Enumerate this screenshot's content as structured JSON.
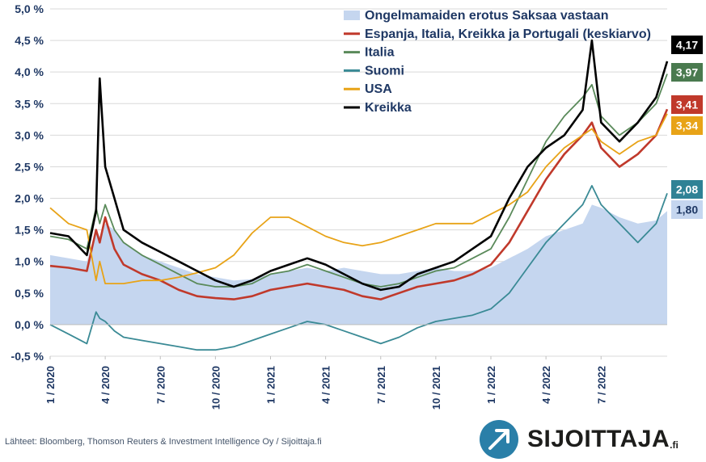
{
  "chart_data": {
    "type": "line",
    "title": "",
    "ylim": [
      -0.5,
      5.0
    ],
    "y_ticks": [
      "-0,5 %",
      "0,0 %",
      "0,5 %",
      "1,0 %",
      "1,5 %",
      "2,0 %",
      "2,5 %",
      "3,0 %",
      "3,5 %",
      "4,0 %",
      "4,5 %",
      "5,0 %"
    ],
    "x_ticks": [
      "1 / 2020",
      "4 / 2020",
      "7 / 2020",
      "10 / 2020",
      "1 / 2021",
      "4 / 2021",
      "7 / 2021",
      "10 / 2021",
      "1 / 2022",
      "4 / 2022",
      "7 / 2022"
    ],
    "x_months": [
      0,
      1,
      2,
      2.5,
      2.7,
      3,
      3.5,
      4,
      5,
      6,
      7,
      8,
      9,
      10,
      11,
      12,
      13,
      14,
      15,
      16,
      17,
      18,
      19,
      20,
      21,
      22,
      23,
      24,
      25,
      26,
      27,
      28,
      29,
      29.5,
      30,
      31,
      32,
      33,
      33.6
    ],
    "grid": true,
    "legend_position": "top-right",
    "series": [
      {
        "name": "Ongelmamaiden erotus Saksaa vastaan",
        "kind": "area",
        "color": "#c5d6ef",
        "values": [
          1.1,
          1.05,
          1.0,
          1.5,
          1.4,
          1.6,
          1.5,
          1.3,
          1.1,
          1.0,
          0.9,
          0.8,
          0.75,
          0.7,
          0.72,
          0.8,
          0.85,
          0.9,
          0.85,
          0.9,
          0.85,
          0.8,
          0.8,
          0.85,
          0.9,
          0.85,
          0.85,
          0.9,
          1.05,
          1.2,
          1.4,
          1.5,
          1.6,
          1.9,
          1.85,
          1.7,
          1.6,
          1.65,
          1.8
        ]
      },
      {
        "name": "Espanja, Italia, Kreikka ja Portugali (keskiarvo)",
        "kind": "line",
        "color": "#c0392b",
        "values": [
          0.93,
          0.9,
          0.85,
          1.5,
          1.3,
          1.7,
          1.2,
          0.95,
          0.8,
          0.7,
          0.55,
          0.45,
          0.42,
          0.4,
          0.45,
          0.55,
          0.6,
          0.65,
          0.6,
          0.55,
          0.45,
          0.4,
          0.5,
          0.6,
          0.65,
          0.7,
          0.8,
          0.95,
          1.3,
          1.8,
          2.3,
          2.7,
          3.0,
          3.2,
          2.8,
          2.5,
          2.7,
          3.0,
          3.41
        ]
      },
      {
        "name": "Italia",
        "kind": "line",
        "color": "#5a8a5a",
        "values": [
          1.4,
          1.35,
          1.2,
          1.85,
          1.6,
          1.9,
          1.5,
          1.3,
          1.1,
          0.95,
          0.8,
          0.65,
          0.6,
          0.6,
          0.65,
          0.8,
          0.85,
          0.95,
          0.85,
          0.75,
          0.65,
          0.6,
          0.65,
          0.75,
          0.85,
          0.9,
          1.05,
          1.2,
          1.7,
          2.3,
          2.9,
          3.3,
          3.6,
          3.8,
          3.3,
          3.0,
          3.2,
          3.5,
          3.97
        ]
      },
      {
        "name": "Suomi",
        "kind": "line",
        "color": "#3a8a95",
        "values": [
          0.0,
          -0.15,
          -0.3,
          0.2,
          0.1,
          0.05,
          -0.1,
          -0.2,
          -0.25,
          -0.3,
          -0.35,
          -0.4,
          -0.4,
          -0.35,
          -0.25,
          -0.15,
          -0.05,
          0.05,
          0.0,
          -0.1,
          -0.2,
          -0.3,
          -0.2,
          -0.05,
          0.05,
          0.1,
          0.15,
          0.25,
          0.5,
          0.9,
          1.3,
          1.6,
          1.9,
          2.2,
          1.9,
          1.6,
          1.3,
          1.6,
          2.08
        ]
      },
      {
        "name": "USA",
        "kind": "line",
        "color": "#e8a317",
        "values": [
          1.85,
          1.6,
          1.5,
          0.7,
          1.0,
          0.65,
          0.65,
          0.65,
          0.7,
          0.7,
          0.75,
          0.82,
          0.9,
          1.1,
          1.45,
          1.7,
          1.7,
          1.55,
          1.4,
          1.3,
          1.25,
          1.3,
          1.4,
          1.5,
          1.6,
          1.6,
          1.6,
          1.75,
          1.9,
          2.1,
          2.5,
          2.8,
          3.0,
          3.1,
          2.9,
          2.7,
          2.9,
          3.0,
          3.34
        ]
      },
      {
        "name": "Kreikka",
        "kind": "line",
        "color": "#000000",
        "values": [
          1.45,
          1.4,
          1.1,
          1.8,
          3.9,
          2.5,
          2.0,
          1.5,
          1.3,
          1.15,
          1.0,
          0.85,
          0.7,
          0.6,
          0.7,
          0.85,
          0.95,
          1.05,
          0.95,
          0.8,
          0.65,
          0.55,
          0.6,
          0.8,
          0.9,
          1.0,
          1.2,
          1.4,
          2.0,
          2.5,
          2.8,
          3.0,
          3.4,
          4.5,
          3.2,
          2.9,
          3.2,
          3.6,
          4.17
        ]
      }
    ],
    "end_labels": [
      {
        "series": "Kreikka",
        "text": "4,17",
        "bg": "#000000",
        "fg": "#ffffff"
      },
      {
        "series": "Italia",
        "text": "3,97",
        "bg": "#4a7a4f",
        "fg": "#ffffff"
      },
      {
        "series": "Espanja, Italia, Kreikka ja Portugali (keskiarvo)",
        "text": "3,41",
        "bg": "#c0392b",
        "fg": "#ffffff"
      },
      {
        "series": "USA",
        "text": "3,34",
        "bg": "#e8a317",
        "fg": "#ffffff"
      },
      {
        "series": "Suomi",
        "text": "2,08",
        "bg": "#2f8295",
        "fg": "#ffffff"
      },
      {
        "series": "Ongelmamaiden erotus Saksaa vastaan",
        "text": "1,80",
        "bg": "#c5d6ef",
        "fg": "#1f3864"
      }
    ]
  },
  "footer": {
    "source": "Lähteet: Bloomberg, Thomson Reuters & Investment Intelligence Oy / Sijoittaja.fi",
    "brand": "SIJOITTAJA",
    "brand_suffix": ".fi"
  }
}
